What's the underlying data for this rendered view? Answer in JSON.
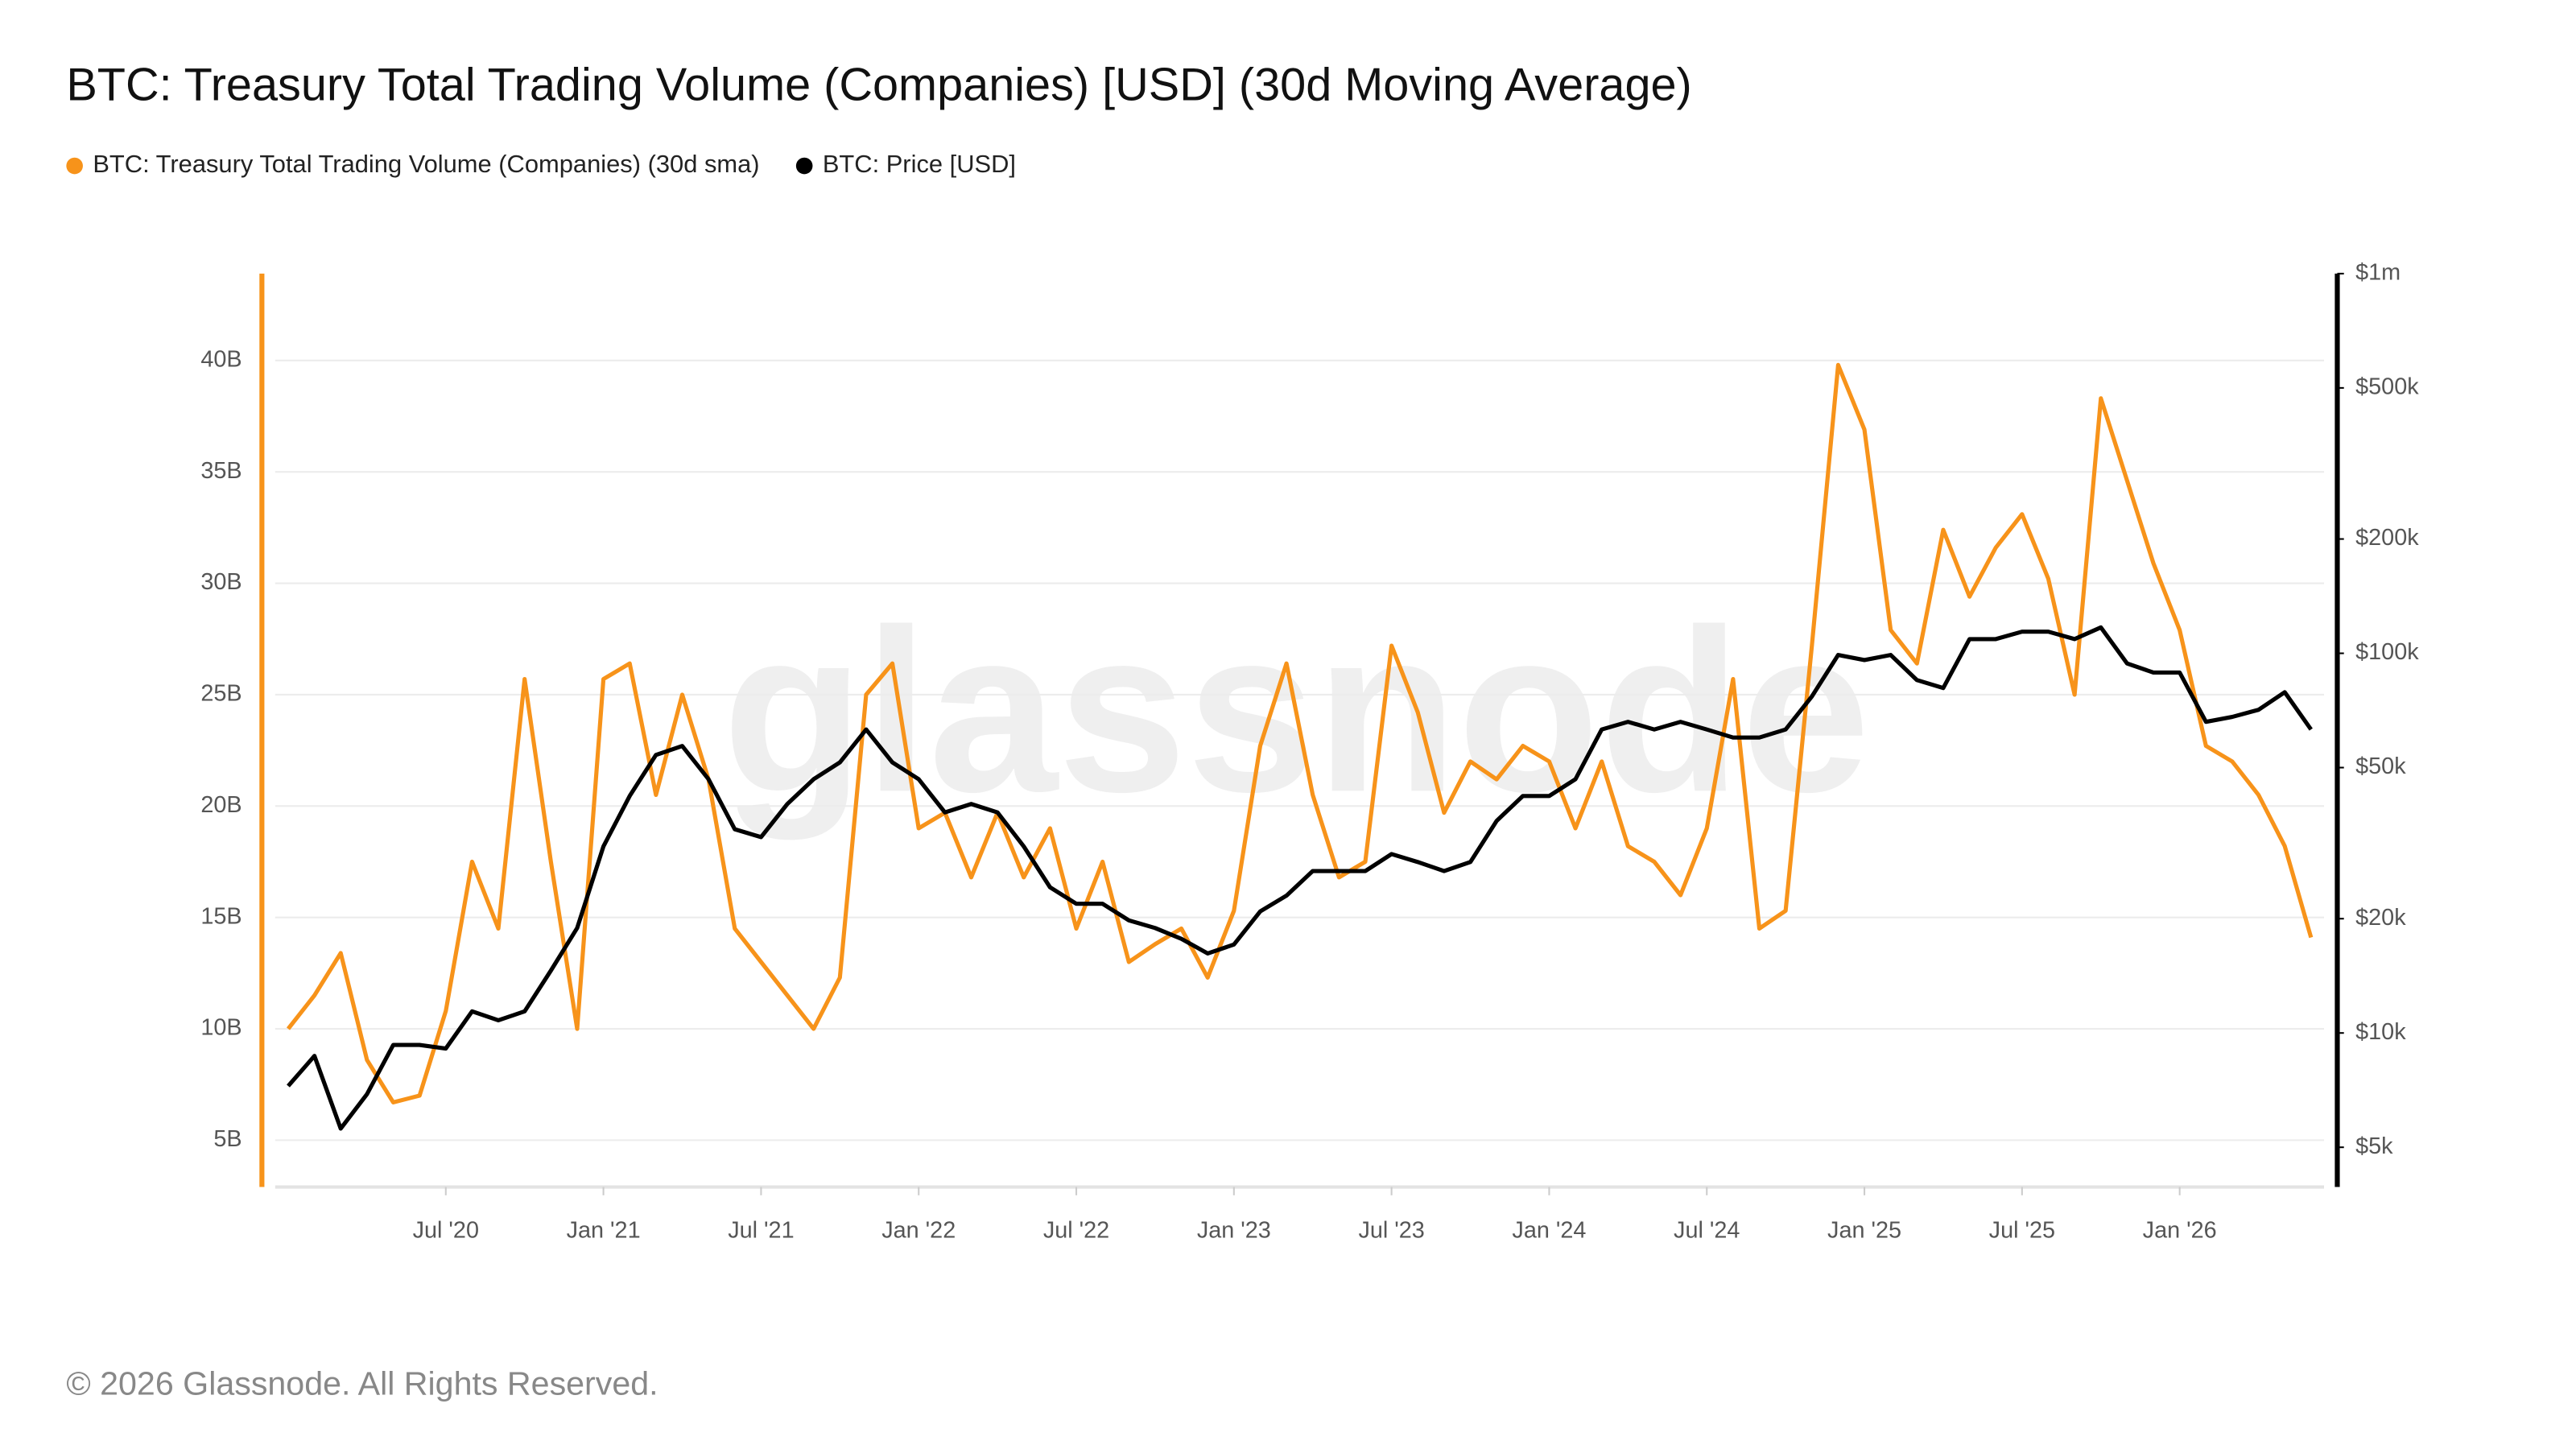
{
  "chart_data": {
    "type": "line",
    "title": "BTC: Treasury Total Trading Volume (Companies) [USD] (30d Moving Average)",
    "watermark": "glassnode",
    "footer": "© 2026 Glassnode. All Rights Reserved.",
    "x": [
      "2020-01",
      "2020-02",
      "2020-03",
      "2020-04",
      "2020-05",
      "2020-06",
      "2020-07",
      "2020-08",
      "2020-09",
      "2020-10",
      "2020-11",
      "2020-12",
      "2021-01",
      "2021-02",
      "2021-03",
      "2021-04",
      "2021-05",
      "2021-06",
      "2021-07",
      "2021-08",
      "2021-09",
      "2021-10",
      "2021-11",
      "2021-12",
      "2022-01",
      "2022-02",
      "2022-03",
      "2022-04",
      "2022-05",
      "2022-06",
      "2022-07",
      "2022-08",
      "2022-09",
      "2022-10",
      "2022-11",
      "2022-12",
      "2023-01",
      "2023-02",
      "2023-03",
      "2023-04",
      "2023-05",
      "2023-06",
      "2023-07",
      "2023-08",
      "2023-09",
      "2023-10",
      "2023-11",
      "2023-12",
      "2024-01",
      "2024-02",
      "2024-03",
      "2024-04",
      "2024-05",
      "2024-06",
      "2024-07",
      "2024-08",
      "2024-09",
      "2024-10",
      "2024-11",
      "2024-12",
      "2025-01",
      "2025-02",
      "2025-03",
      "2025-04",
      "2025-05",
      "2025-06",
      "2025-07",
      "2025-08",
      "2025-09",
      "2025-10",
      "2025-11",
      "2025-12",
      "2026-01",
      "2026-02",
      "2026-03",
      "2026-04",
      "2026-05",
      "2026-06"
    ],
    "xlim": [
      "2019-12",
      "2026-07"
    ],
    "xticks": [
      {
        "value": "2020-07",
        "label": "Jul '20"
      },
      {
        "value": "2021-01",
        "label": "Jan '21"
      },
      {
        "value": "2021-07",
        "label": "Jul '21"
      },
      {
        "value": "2022-01",
        "label": "Jan '22"
      },
      {
        "value": "2022-07",
        "label": "Jul '22"
      },
      {
        "value": "2023-01",
        "label": "Jan '23"
      },
      {
        "value": "2023-07",
        "label": "Jul '23"
      },
      {
        "value": "2024-01",
        "label": "Jan '24"
      },
      {
        "value": "2024-07",
        "label": "Jul '24"
      },
      {
        "value": "2025-01",
        "label": "Jan '25"
      },
      {
        "value": "2025-07",
        "label": "Jul '25"
      },
      {
        "value": "2026-01",
        "label": "Jan '26"
      }
    ],
    "ylim": [
      2900000000,
      43900000000
    ],
    "yticks": [
      {
        "value": 5000000000,
        "label": "5B"
      },
      {
        "value": 10000000000,
        "label": "10B"
      },
      {
        "value": 15000000000,
        "label": "15B"
      },
      {
        "value": 20000000000,
        "label": "20B"
      },
      {
        "value": 25000000000,
        "label": "25B"
      },
      {
        "value": 30000000000,
        "label": "30B"
      },
      {
        "value": 35000000000,
        "label": "35B"
      },
      {
        "value": 40000000000,
        "label": "40B"
      }
    ],
    "y2lim": [
      3930,
      1000000
    ],
    "y2scale": "log",
    "y2ticks": [
      {
        "value": 5000,
        "label": "$5k"
      },
      {
        "value": 10000,
        "label": "$10k"
      },
      {
        "value": 20000,
        "label": "$20k"
      },
      {
        "value": 50000,
        "label": "$50k"
      },
      {
        "value": 100000,
        "label": "$100k"
      },
      {
        "value": 200000,
        "label": "$200k"
      },
      {
        "value": 500000,
        "label": "$500k"
      },
      {
        "value": 1000000,
        "label": "$1m"
      }
    ],
    "grid": true,
    "legend": "top-left",
    "series": [
      {
        "name": "BTC: Treasury Total Trading Volume (Companies) (30d sma)",
        "color": "#f7931a",
        "axis": "y",
        "values": [
          10000000000,
          11500000000,
          13400000000,
          8600000000,
          6700000000,
          7000000000,
          10800000000,
          17500000000,
          14500000000,
          25700000000,
          17500000000,
          10000000000,
          25700000000,
          26400000000,
          20500000000,
          25000000000,
          21200000000,
          14500000000,
          13000000000,
          11500000000,
          10000000000,
          12300000000,
          25000000000,
          26400000000,
          19000000000,
          19700000000,
          16800000000,
          19700000000,
          16800000000,
          19000000000,
          14500000000,
          17500000000,
          13000000000,
          13800000000,
          14500000000,
          12300000000,
          15300000000,
          22700000000,
          26400000000,
          20500000000,
          16800000000,
          17500000000,
          27200000000,
          24200000000,
          19700000000,
          22000000000,
          21200000000,
          22700000000,
          22000000000,
          19000000000,
          22000000000,
          18200000000,
          17500000000,
          16000000000,
          19000000000,
          25700000000,
          14500000000,
          15300000000,
          27200000000,
          39800000000,
          36900000000,
          27900000000,
          26400000000,
          32400000000,
          29400000000,
          31600000000,
          33100000000,
          30200000000,
          25000000000,
          38300000000,
          34600000000,
          30900000000,
          27900000000,
          22700000000,
          22000000000,
          20500000000,
          18200000000,
          14100000000
        ]
      },
      {
        "name": "BTC: Price [USD]",
        "color": "#000000",
        "axis": "y2",
        "values": [
          7250,
          8700,
          5600,
          6900,
          9300,
          9300,
          9100,
          11400,
          10800,
          11400,
          14600,
          18900,
          31000,
          42100,
          54000,
          57000,
          46600,
          34400,
          32800,
          40100,
          46600,
          51600,
          63000,
          51600,
          46600,
          38100,
          40100,
          38100,
          31000,
          24200,
          21900,
          21900,
          19800,
          18900,
          17700,
          16200,
          17100,
          20900,
          23000,
          26700,
          26700,
          26700,
          29600,
          28200,
          26700,
          28200,
          36200,
          42100,
          42100,
          46600,
          63000,
          66000,
          63000,
          66000,
          63000,
          60000,
          60000,
          63000,
          77000,
          99000,
          96000,
          99000,
          85000,
          81000,
          109000,
          109000,
          114000,
          114000,
          109000,
          117000,
          94000,
          89000,
          89000,
          66000,
          68000,
          71000,
          79000,
          63000
        ]
      }
    ]
  }
}
